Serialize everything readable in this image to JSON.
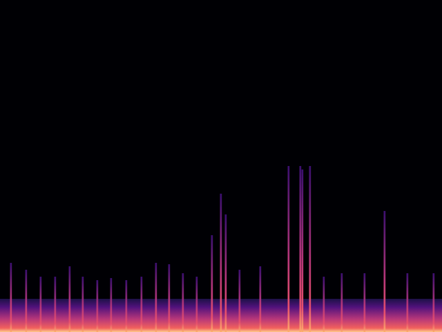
{
  "chart_data": {
    "type": "spectrogram",
    "tick_labels": false,
    "grid": false,
    "color": "#b5367a",
    "xlim": [
      0,
      640
    ],
    "ylim": [
      0,
      480
    ],
    "x": [
      16,
      38,
      59,
      80,
      101,
      120,
      141,
      161,
      183,
      205,
      226,
      245,
      265,
      285,
      307,
      320,
      327,
      347,
      377,
      418,
      435,
      438,
      449,
      469,
      495,
      528,
      557,
      590,
      628
    ],
    "values": [
      100,
      90,
      80,
      80,
      95,
      80,
      75,
      78,
      75,
      80,
      100,
      98,
      85,
      80,
      140,
      200,
      170,
      90,
      95,
      240,
      240,
      235,
      240,
      80,
      85,
      85,
      175,
      85,
      85
    ],
    "floor": 48
  }
}
